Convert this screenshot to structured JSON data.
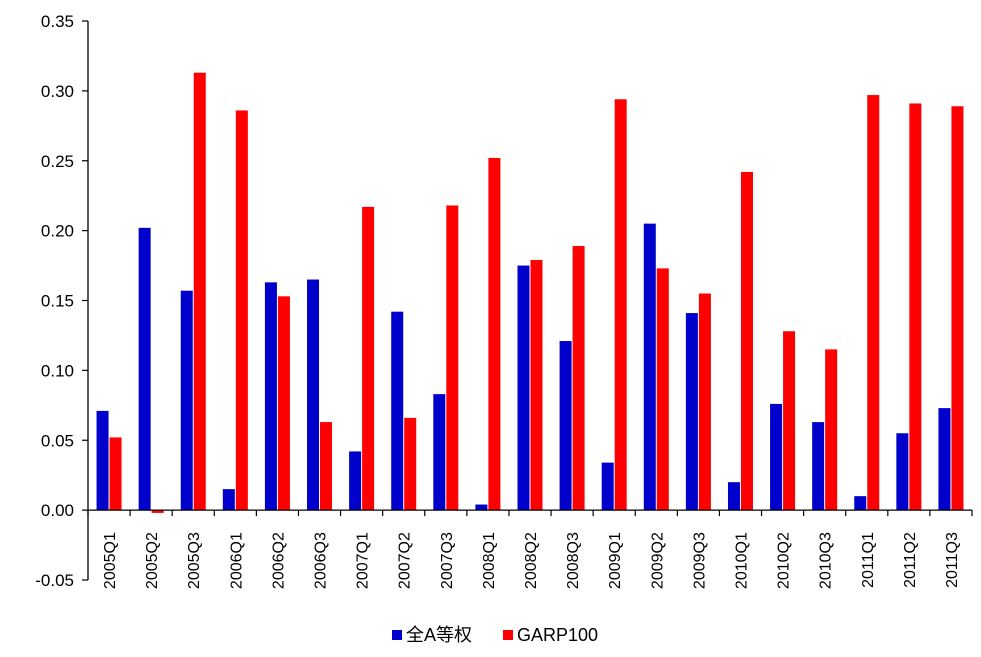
{
  "chart_data": {
    "type": "bar",
    "title": "",
    "xlabel": "",
    "ylabel": "",
    "ylim": [
      -0.05,
      0.35
    ],
    "yticks": [
      "0.35",
      "0.30",
      "0.25",
      "0.20",
      "0.15",
      "0.10",
      "0.05",
      "0.00",
      "-0.05"
    ],
    "ytick_values": [
      0.35,
      0.3,
      0.25,
      0.2,
      0.15,
      0.1,
      0.05,
      0.0,
      -0.05
    ],
    "categories": [
      "2005Q1",
      "2005Q2",
      "2005Q3",
      "2006Q1",
      "2006Q2",
      "2006Q3",
      "2007Q1",
      "2007Q2",
      "2007Q3",
      "2008Q1",
      "2008Q2",
      "2008Q3",
      "2009Q1",
      "2009Q2",
      "2009Q3",
      "2010Q1",
      "2010Q2",
      "2010Q3",
      "2011Q1",
      "2011Q2",
      "2011Q3"
    ],
    "series": [
      {
        "name": "全A等权",
        "color": "#0000cc",
        "values": [
          0.071,
          0.202,
          0.157,
          0.015,
          0.163,
          0.165,
          0.042,
          0.142,
          0.083,
          0.004,
          0.175,
          0.121,
          0.034,
          0.205,
          0.141,
          0.02,
          0.076,
          0.063,
          0.01,
          0.055,
          0.073
        ]
      },
      {
        "name": "GARP100",
        "color": "#ff0000",
        "values": [
          0.052,
          -0.002,
          0.313,
          0.286,
          0.153,
          0.063,
          0.217,
          0.066,
          0.218,
          0.252,
          0.179,
          0.189,
          0.294,
          0.173,
          0.155,
          0.242,
          0.128,
          0.115,
          0.297,
          0.291,
          0.289
        ]
      }
    ],
    "legend_position": "bottom-center",
    "grid": false
  }
}
